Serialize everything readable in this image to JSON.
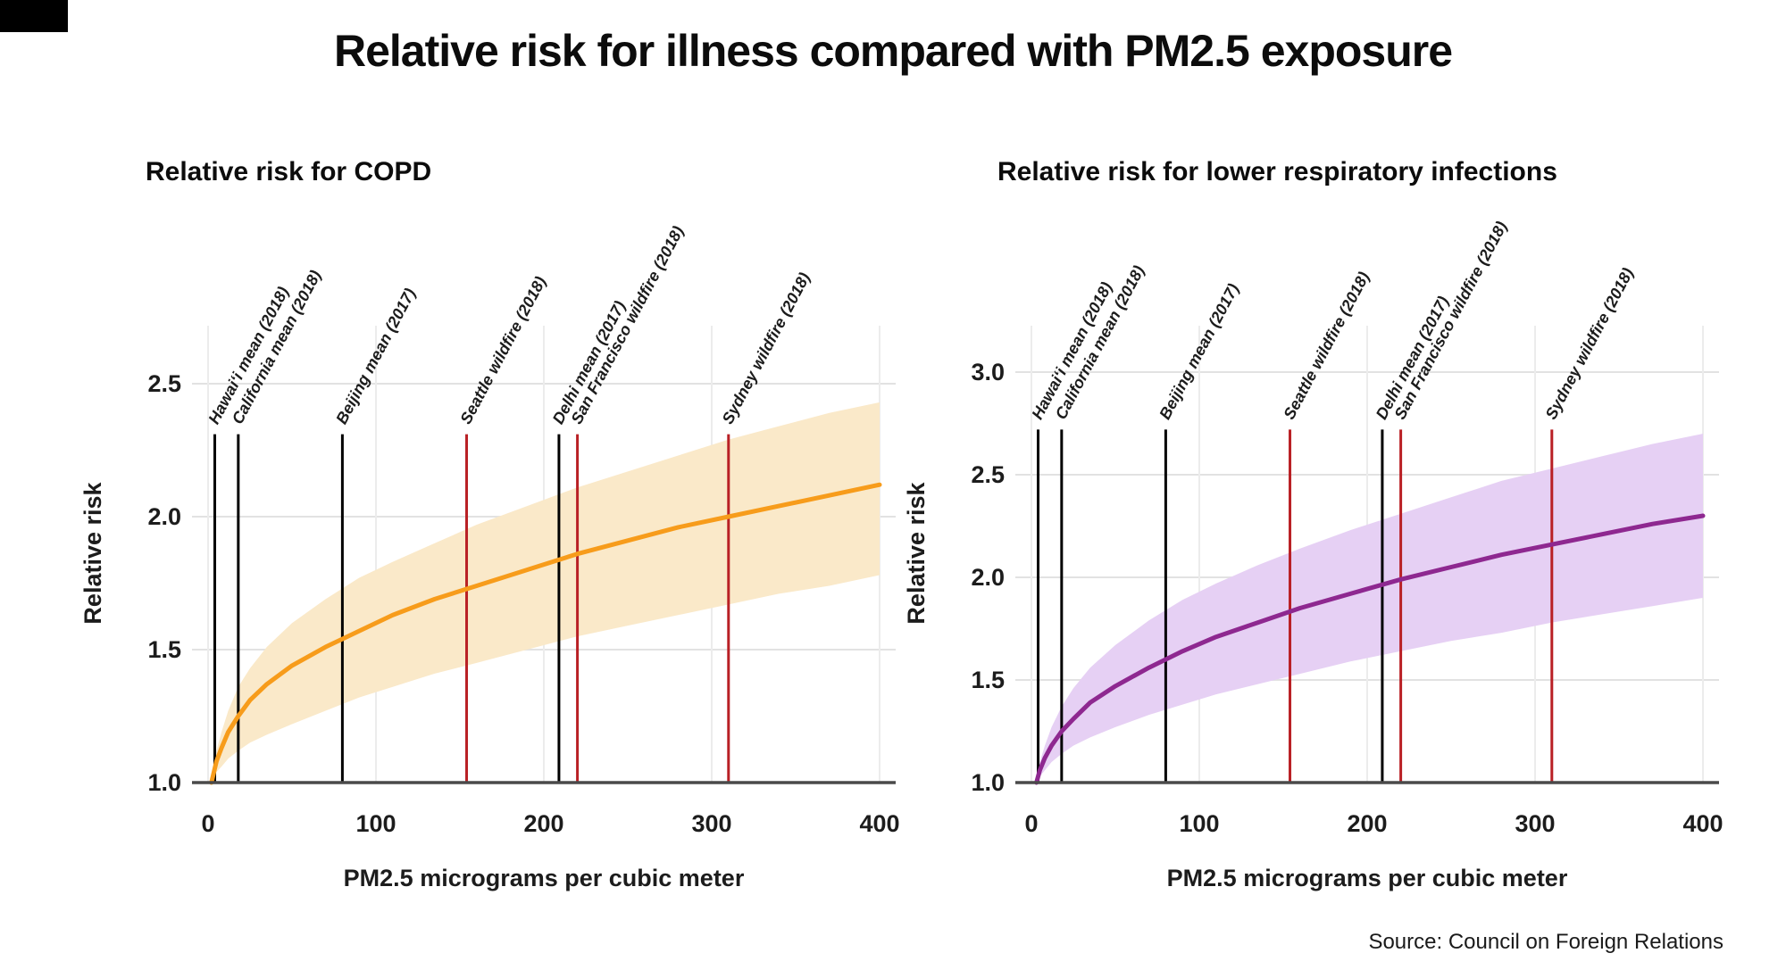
{
  "title": "Relative risk for illness compared with PM2.5 exposure",
  "source": "Source: Council on Foreign Relations",
  "colors": {
    "grid_h": "#e2e2e2",
    "grid_v": "#ececec",
    "axis_line": "#4a4a4a",
    "tick_text": "#1c1c1c",
    "mean_line": "#000000",
    "wildfire_line": "#b92025",
    "copd_curve": "#f79c1b",
    "copd_band": "#fae9c9",
    "lri_curve": "#8e2890",
    "lri_band": "#e6d0f4"
  },
  "chart_data": [
    {
      "id": "copd",
      "type": "line",
      "title": "Relative risk for COPD",
      "xlabel": "PM2.5 micrograms per cubic meter",
      "ylabel": "Relative risk",
      "xlim": [
        0,
        400
      ],
      "ylim": [
        1.0,
        2.5
      ],
      "xticks": [
        0,
        100,
        200,
        300,
        400
      ],
      "yticks": [
        "1.0",
        "1.5",
        "2.0",
        "2.5"
      ],
      "grid": true,
      "legend": "none",
      "marker_top": 2.31,
      "series": [
        {
          "name": "relative-risk-mean",
          "color": "#f79c1b",
          "points": [
            [
              2,
              1.0
            ],
            [
              5,
              1.08
            ],
            [
              8,
              1.13
            ],
            [
              12,
              1.19
            ],
            [
              18,
              1.25
            ],
            [
              25,
              1.31
            ],
            [
              35,
              1.37
            ],
            [
              50,
              1.44
            ],
            [
              70,
              1.51
            ],
            [
              90,
              1.57
            ],
            [
              110,
              1.63
            ],
            [
              135,
              1.69
            ],
            [
              160,
              1.74
            ],
            [
              190,
              1.8
            ],
            [
              220,
              1.86
            ],
            [
              250,
              1.91
            ],
            [
              280,
              1.96
            ],
            [
              310,
              2.0
            ],
            [
              340,
              2.04
            ],
            [
              370,
              2.08
            ],
            [
              400,
              2.12
            ]
          ]
        },
        {
          "name": "confidence-band-upper",
          "color": "#fae9c9",
          "points": [
            [
              2,
              1.0
            ],
            [
              5,
              1.12
            ],
            [
              8,
              1.19
            ],
            [
              12,
              1.27
            ],
            [
              18,
              1.36
            ],
            [
              25,
              1.43
            ],
            [
              35,
              1.51
            ],
            [
              50,
              1.6
            ],
            [
              70,
              1.69
            ],
            [
              90,
              1.77
            ],
            [
              110,
              1.83
            ],
            [
              135,
              1.9
            ],
            [
              160,
              1.97
            ],
            [
              190,
              2.04
            ],
            [
              220,
              2.11
            ],
            [
              250,
              2.17
            ],
            [
              280,
              2.23
            ],
            [
              310,
              2.29
            ],
            [
              340,
              2.34
            ],
            [
              370,
              2.39
            ],
            [
              400,
              2.43
            ]
          ]
        },
        {
          "name": "confidence-band-lower",
          "color": "#fae9c9",
          "points": [
            [
              2,
              1.0
            ],
            [
              5,
              1.04
            ],
            [
              8,
              1.06
            ],
            [
              12,
              1.09
            ],
            [
              18,
              1.12
            ],
            [
              25,
              1.15
            ],
            [
              35,
              1.18
            ],
            [
              50,
              1.22
            ],
            [
              70,
              1.27
            ],
            [
              90,
              1.32
            ],
            [
              110,
              1.36
            ],
            [
              135,
              1.41
            ],
            [
              160,
              1.45
            ],
            [
              190,
              1.5
            ],
            [
              220,
              1.55
            ],
            [
              250,
              1.59
            ],
            [
              280,
              1.63
            ],
            [
              310,
              1.67
            ],
            [
              340,
              1.71
            ],
            [
              370,
              1.74
            ],
            [
              400,
              1.78
            ]
          ]
        }
      ],
      "reference_lines": [
        {
          "label": "Hawai‘i mean (2018)",
          "x": 4,
          "type": "mean"
        },
        {
          "label": "California mean (2018)",
          "x": 18,
          "type": "mean"
        },
        {
          "label": "Beijing mean (2017)",
          "x": 80,
          "type": "mean"
        },
        {
          "label": "Seattle wildfire (2018)",
          "x": 154,
          "type": "wildfire"
        },
        {
          "label": "Delhi mean (2017)",
          "x": 209,
          "type": "mean"
        },
        {
          "label": "San Francisco wildfire (2018)",
          "x": 220,
          "type": "wildfire"
        },
        {
          "label": "Sydney wildfire (2018)",
          "x": 310,
          "type": "wildfire"
        }
      ]
    },
    {
      "id": "lri",
      "type": "line",
      "title": "Relative risk for lower respiratory infections",
      "xlabel": "PM2.5 micrograms per cubic meter",
      "ylabel": "Relative risk",
      "xlim": [
        0,
        400
      ],
      "ylim": [
        1.0,
        3.0
      ],
      "xticks": [
        0,
        100,
        200,
        300,
        400
      ],
      "yticks": [
        "1.0",
        "1.5",
        "2.0",
        "2.5",
        "3.0"
      ],
      "grid": true,
      "legend": "none",
      "marker_top": 2.72,
      "series": [
        {
          "name": "relative-risk-mean",
          "color": "#8e2890",
          "points": [
            [
              3,
              1.0
            ],
            [
              5,
              1.06
            ],
            [
              8,
              1.12
            ],
            [
              12,
              1.18
            ],
            [
              18,
              1.25
            ],
            [
              25,
              1.31
            ],
            [
              35,
              1.39
            ],
            [
              50,
              1.47
            ],
            [
              70,
              1.56
            ],
            [
              90,
              1.64
            ],
            [
              110,
              1.71
            ],
            [
              135,
              1.78
            ],
            [
              160,
              1.85
            ],
            [
              190,
              1.92
            ],
            [
              220,
              1.99
            ],
            [
              250,
              2.05
            ],
            [
              280,
              2.11
            ],
            [
              310,
              2.16
            ],
            [
              340,
              2.21
            ],
            [
              370,
              2.26
            ],
            [
              400,
              2.3
            ]
          ]
        },
        {
          "name": "confidence-band-upper",
          "color": "#e6d0f4",
          "points": [
            [
              3,
              1.0
            ],
            [
              5,
              1.1
            ],
            [
              8,
              1.18
            ],
            [
              12,
              1.27
            ],
            [
              18,
              1.37
            ],
            [
              25,
              1.46
            ],
            [
              35,
              1.56
            ],
            [
              50,
              1.67
            ],
            [
              70,
              1.79
            ],
            [
              90,
              1.89
            ],
            [
              110,
              1.97
            ],
            [
              135,
              2.06
            ],
            [
              160,
              2.14
            ],
            [
              190,
              2.23
            ],
            [
              220,
              2.31
            ],
            [
              250,
              2.39
            ],
            [
              280,
              2.47
            ],
            [
              310,
              2.53
            ],
            [
              340,
              2.59
            ],
            [
              370,
              2.65
            ],
            [
              400,
              2.7
            ]
          ]
        },
        {
          "name": "confidence-band-lower",
          "color": "#e6d0f4",
          "points": [
            [
              3,
              1.0
            ],
            [
              5,
              1.03
            ],
            [
              8,
              1.06
            ],
            [
              12,
              1.1
            ],
            [
              18,
              1.14
            ],
            [
              25,
              1.18
            ],
            [
              35,
              1.22
            ],
            [
              50,
              1.27
            ],
            [
              70,
              1.33
            ],
            [
              90,
              1.38
            ],
            [
              110,
              1.43
            ],
            [
              135,
              1.48
            ],
            [
              160,
              1.53
            ],
            [
              190,
              1.59
            ],
            [
              220,
              1.64
            ],
            [
              250,
              1.69
            ],
            [
              280,
              1.73
            ],
            [
              310,
              1.78
            ],
            [
              340,
              1.82
            ],
            [
              370,
              1.86
            ],
            [
              400,
              1.9
            ]
          ]
        }
      ],
      "reference_lines": [
        {
          "label": "Hawai‘i mean (2018)",
          "x": 4,
          "type": "mean"
        },
        {
          "label": "California mean (2018)",
          "x": 18,
          "type": "mean"
        },
        {
          "label": "Beijing mean (2017)",
          "x": 80,
          "type": "mean"
        },
        {
          "label": "Seattle wildfire (2018)",
          "x": 154,
          "type": "wildfire"
        },
        {
          "label": "Delhi mean (2017)",
          "x": 209,
          "type": "mean"
        },
        {
          "label": "San Francisco wildfire (2018)",
          "x": 220,
          "type": "wildfire"
        },
        {
          "label": "Sydney wildfire (2018)",
          "x": 310,
          "type": "wildfire"
        }
      ]
    }
  ]
}
